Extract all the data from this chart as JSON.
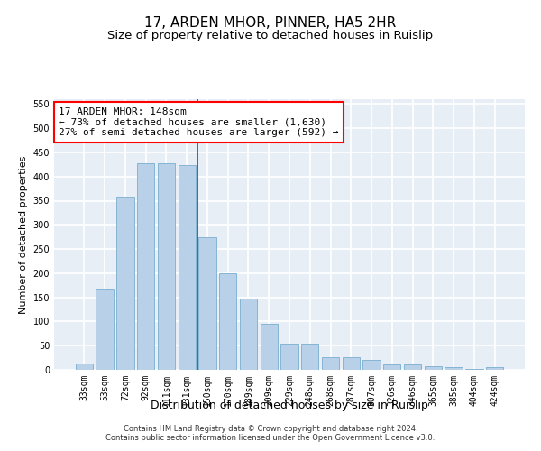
{
  "title": "17, ARDEN MHOR, PINNER, HA5 2HR",
  "subtitle": "Size of property relative to detached houses in Ruislip",
  "xlabel": "Distribution of detached houses by size in Ruislip",
  "ylabel": "Number of detached properties",
  "categories": [
    "33sqm",
    "53sqm",
    "72sqm",
    "92sqm",
    "111sqm",
    "131sqm",
    "150sqm",
    "170sqm",
    "189sqm",
    "209sqm",
    "229sqm",
    "248sqm",
    "268sqm",
    "287sqm",
    "307sqm",
    "326sqm",
    "346sqm",
    "365sqm",
    "385sqm",
    "404sqm",
    "424sqm"
  ],
  "values": [
    14,
    168,
    358,
    428,
    428,
    424,
    275,
    200,
    148,
    95,
    54,
    54,
    27,
    27,
    20,
    11,
    12,
    7,
    5,
    2,
    6
  ],
  "bar_color": "#b8d0e8",
  "bar_edge_color": "#7aadd0",
  "vline_x_index": 6,
  "vline_color": "red",
  "annotation_text": "17 ARDEN MHOR: 148sqm\n← 73% of detached houses are smaller (1,630)\n27% of semi-detached houses are larger (592) →",
  "annotation_box_color": "white",
  "annotation_box_edge_color": "red",
  "ylim": [
    0,
    560
  ],
  "yticks": [
    0,
    50,
    100,
    150,
    200,
    250,
    300,
    350,
    400,
    450,
    500,
    550
  ],
  "footer": "Contains HM Land Registry data © Crown copyright and database right 2024.\nContains public sector information licensed under the Open Government Licence v3.0.",
  "background_color": "#e8eef6",
  "grid_color": "white",
  "title_fontsize": 11,
  "subtitle_fontsize": 9.5,
  "xlabel_fontsize": 9,
  "ylabel_fontsize": 8,
  "tick_fontsize": 7,
  "annotation_fontsize": 8,
  "footer_fontsize": 6
}
